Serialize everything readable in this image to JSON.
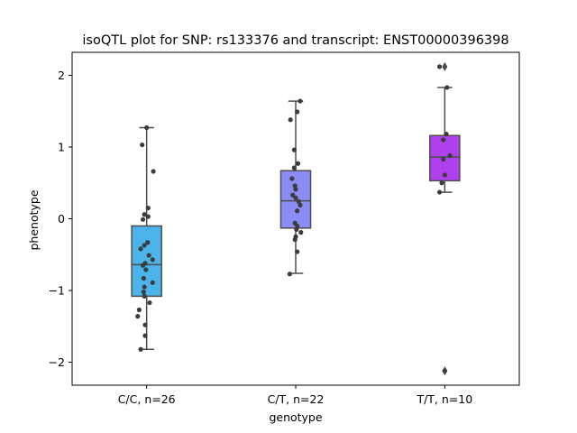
{
  "chart_data": {
    "type": "box",
    "title": "isoQTL plot for SNP: rs133376 and transcript: ENST00000396398",
    "xlabel": "genotype",
    "ylabel": "phenotype",
    "ylim": [
      -2.32,
      2.32
    ],
    "yticks": [
      2,
      1,
      0,
      -1,
      -2
    ],
    "ytick_labels": [
      "2",
      "1",
      "0",
      "−1",
      "−2"
    ],
    "categories": [
      "C/C, n=26",
      "C/T, n=22",
      "T/T, n=10"
    ],
    "colors": {
      "box": [
        "#4bb4ea",
        "#8c8cf5",
        "#b040ee"
      ],
      "line": "#4d4d4d",
      "point": "#3c3c3c"
    },
    "boxes": [
      {
        "q1": -1.08,
        "median": -0.64,
        "q3": -0.1,
        "whisker_low": -1.82,
        "whisker_high": 1.27,
        "fliers": []
      },
      {
        "q1": -0.13,
        "median": 0.25,
        "q3": 0.67,
        "whisker_low": -0.76,
        "whisker_high": 1.64,
        "fliers": []
      },
      {
        "q1": 0.53,
        "median": 0.86,
        "q3": 1.16,
        "whisker_low": 0.37,
        "whisker_high": 1.83,
        "fliers": [
          2.12,
          -2.12
        ]
      }
    ],
    "points": [
      [
        [
          1.27,
          0.0
        ],
        [
          1.03,
          -0.3
        ],
        [
          0.66,
          0.45
        ],
        [
          0.15,
          0.1
        ],
        [
          0.06,
          -0.15
        ],
        [
          0.03,
          0.1
        ],
        [
          -0.01,
          -0.25
        ],
        [
          -0.33,
          0.07
        ],
        [
          -0.37,
          -0.15
        ],
        [
          -0.42,
          -0.4
        ],
        [
          -0.51,
          0.15
        ],
        [
          -0.57,
          0.4
        ],
        [
          -0.65,
          -0.25
        ],
        [
          -0.71,
          -0.05
        ],
        [
          -0.83,
          -0.2
        ],
        [
          -0.89,
          0.4
        ],
        [
          -0.95,
          -0.15
        ],
        [
          -1.02,
          -0.2
        ],
        [
          -1.08,
          -0.15
        ],
        [
          -1.17,
          0.2
        ],
        [
          -1.27,
          -0.5
        ],
        [
          -1.36,
          -0.6
        ],
        [
          -1.48,
          -0.1
        ],
        [
          -1.63,
          -0.1
        ],
        [
          -1.82,
          -0.4
        ],
        [
          -0.62,
          -0.1
        ]
      ],
      [
        [
          1.64,
          0.3
        ],
        [
          1.49,
          0.1
        ],
        [
          1.38,
          -0.35
        ],
        [
          0.96,
          -0.1
        ],
        [
          0.77,
          0.15
        ],
        [
          0.71,
          -0.1
        ],
        [
          0.56,
          -0.25
        ],
        [
          0.46,
          -0.05
        ],
        [
          0.41,
          0.0
        ],
        [
          0.33,
          -0.2
        ],
        [
          0.29,
          0.0
        ],
        [
          0.24,
          0.2
        ],
        [
          0.19,
          0.3
        ],
        [
          0.11,
          0.1
        ],
        [
          -0.06,
          -0.05
        ],
        [
          -0.1,
          0.1
        ],
        [
          -0.15,
          0.05
        ],
        [
          -0.19,
          0.35
        ],
        [
          -0.25,
          0.0
        ],
        [
          -0.29,
          -0.05
        ],
        [
          -0.46,
          0.1
        ],
        [
          -0.77,
          -0.4
        ]
      ],
      [
        [
          2.12,
          -0.35
        ],
        [
          1.83,
          0.15
        ],
        [
          1.18,
          0.1
        ],
        [
          1.1,
          -0.1
        ],
        [
          0.88,
          0.35
        ],
        [
          0.83,
          -0.1
        ],
        [
          0.61,
          0.0
        ],
        [
          0.5,
          -0.2
        ],
        [
          0.37,
          -0.35
        ],
        [
          -2.12,
          0.0
        ]
      ]
    ]
  }
}
